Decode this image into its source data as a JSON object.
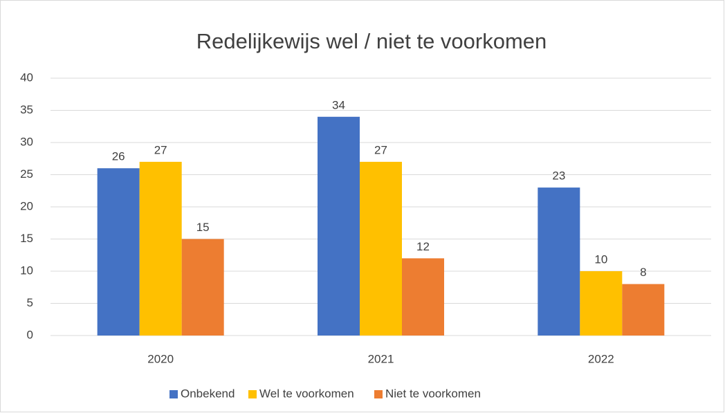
{
  "chart_data": {
    "type": "bar",
    "title": "Redelijkewijs wel / niet te voorkomen",
    "categories": [
      "2020",
      "2021",
      "2022"
    ],
    "series": [
      {
        "name": "Onbekend",
        "color": "#4472c4",
        "values": [
          26,
          34,
          23
        ]
      },
      {
        "name": "Wel te voorkomen",
        "color": "#ffc000",
        "values": [
          27,
          27,
          10
        ]
      },
      {
        "name": "Niet te voorkomen",
        "color": "#ed7d31",
        "values": [
          15,
          12,
          8
        ]
      }
    ],
    "ylim": [
      0,
      40
    ],
    "yticks": [
      0,
      5,
      10,
      15,
      20,
      25,
      30,
      35,
      40
    ],
    "grid": true,
    "legend": "bottom"
  }
}
